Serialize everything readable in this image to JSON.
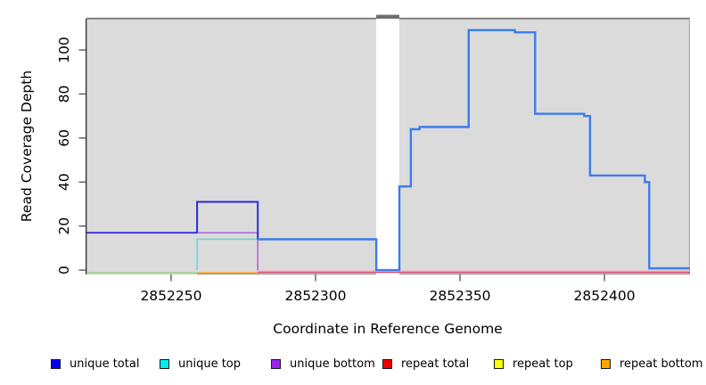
{
  "figure": {
    "xlabel": "Coordinate in Reference Genome",
    "ylabel": "Read Coverage Depth"
  },
  "legend": {
    "items": [
      {
        "label": "unique total",
        "color": "#0000F0"
      },
      {
        "label": "unique top",
        "color": "#00EDED"
      },
      {
        "label": "unique bottom",
        "color": "#A020F0"
      },
      {
        "label": "repeat total",
        "color": "#EE0000"
      },
      {
        "label": "repeat top",
        "color": "#FFFF00"
      },
      {
        "label": "repeat bottom",
        "color": "#FFA500"
      }
    ]
  },
  "chart_data": {
    "type": "line",
    "title": "",
    "xlabel": "Coordinate in Reference Genome",
    "ylabel": "Read Coverage Depth",
    "grid": false,
    "legend_position": "bottom",
    "panel_background": "#DBDBDB",
    "x_axis": {
      "min": 2852220.7,
      "max": 2852429.6,
      "ticks": [
        2852250,
        2852300,
        2852350,
        2852400
      ]
    },
    "y_axis": {
      "min": -2.0,
      "max": 114.2,
      "ticks": [
        0,
        20,
        40,
        60,
        80,
        100
      ]
    },
    "no_data_gap": {
      "x1": 2852321,
      "x2": 2852329
    },
    "series": [
      {
        "name": "repeat-top-zero",
        "color": "#EDEDA8",
        "width": 1.4,
        "dy": 4,
        "points": [
          [
            2852220.7,
            0
          ],
          [
            2852259,
            0
          ]
        ]
      },
      {
        "name": "unique-top-zero-blend",
        "color": "#8FCB8F",
        "width": 1.4,
        "dy": 3,
        "points": [
          [
            2852220.7,
            0
          ],
          [
            2852259,
            0
          ]
        ]
      },
      {
        "name": "repeat-bottom-zero",
        "color": "#FFA428",
        "width": 1.6,
        "dy": 3,
        "points": [
          [
            2852259,
            0
          ],
          [
            2852280,
            0
          ]
        ]
      },
      {
        "name": "repeat-total-zero-highlight",
        "color": "#F0AEC4",
        "width": 1.4,
        "dy": 1,
        "points": [
          [
            2852280,
            0
          ],
          [
            2852429.6,
            0
          ]
        ]
      },
      {
        "name": "repeat-total-zero",
        "color": "#D5486E",
        "width": 1.4,
        "dy": 2.5,
        "points": [
          [
            2852280,
            0
          ],
          [
            2852429.6,
            0
          ]
        ]
      },
      {
        "name": "unique-top",
        "color": "#52DEE4",
        "width": 1.5,
        "dy": 0,
        "points": [
          [
            2852259,
            0
          ],
          [
            2852259,
            14
          ],
          [
            2852280,
            14
          ]
        ]
      },
      {
        "name": "unique-bottom",
        "color": "#AF5FD8",
        "width": 1.5,
        "dy": 0,
        "points": [
          [
            2852259,
            17
          ],
          [
            2852280,
            17
          ],
          [
            2852280,
            0
          ]
        ]
      },
      {
        "name": "unique-total-left-overlap",
        "color": "#4435D8",
        "width": 2,
        "dy": 0,
        "points": [
          [
            2852220.7,
            17
          ],
          [
            2852259,
            17
          ]
        ]
      },
      {
        "name": "unique-total-step",
        "color": "#2A2BDA",
        "width": 2,
        "dy": 0,
        "points": [
          [
            2852259,
            17
          ],
          [
            2852259,
            31
          ],
          [
            2852280,
            31
          ],
          [
            2852280,
            14
          ]
        ]
      },
      {
        "name": "unique-total-right",
        "color": "#3A7CF0",
        "width": 2.4,
        "dy": 0,
        "points": [
          [
            2852280,
            14
          ],
          [
            2852321,
            14
          ],
          [
            2852321,
            0
          ],
          [
            2852329,
            0
          ],
          [
            2852329,
            38
          ],
          [
            2852333,
            38
          ],
          [
            2852333,
            64
          ],
          [
            2852336,
            64
          ],
          [
            2852336,
            65
          ],
          [
            2852353,
            65
          ],
          [
            2852353,
            109
          ],
          [
            2852369,
            109
          ],
          [
            2852369,
            108
          ],
          [
            2852376,
            108
          ],
          [
            2852376,
            71
          ],
          [
            2852393,
            71
          ],
          [
            2852393,
            70
          ],
          [
            2852395,
            70
          ],
          [
            2852395,
            43
          ],
          [
            2852414,
            43
          ],
          [
            2852414,
            40
          ],
          [
            2852415.5,
            40
          ],
          [
            2852415.5,
            0.8
          ],
          [
            2852429.6,
            0.8
          ]
        ]
      }
    ]
  }
}
